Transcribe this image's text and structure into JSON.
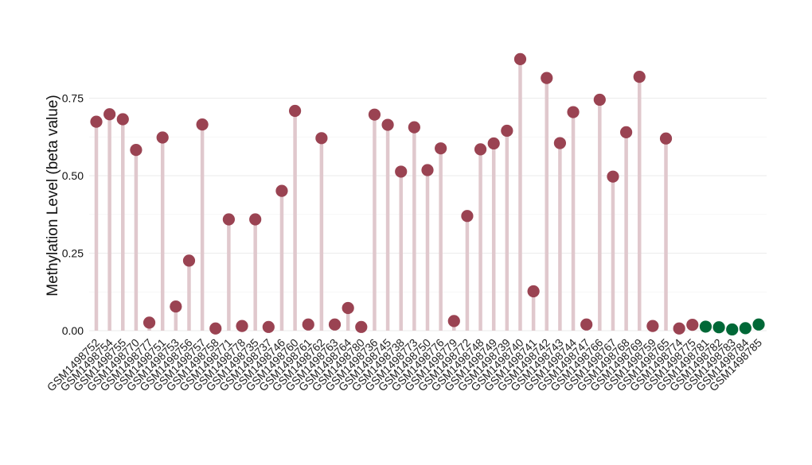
{
  "chart_data": {
    "type": "lollipop",
    "title": "",
    "xlabel": "",
    "ylabel": "Methylation Level (beta value)",
    "ylim": [
      0,
      0.87
    ],
    "yticks": [
      0.0,
      0.25,
      0.5,
      0.75
    ],
    "ytick_labels": [
      "0.00",
      "0.25",
      "0.50",
      "0.75"
    ],
    "grid": true,
    "legend": "none",
    "colors": {
      "group1_point": "#9a4352",
      "group1_stem": "#e0c8cd",
      "group2_point": "#006837",
      "group2_stem": "#c4dccc",
      "grid": "#ebebeb"
    },
    "categories": [
      "GSM1498752",
      "GSM1498754",
      "GSM1498755",
      "GSM1498770",
      "GSM1498777",
      "GSM1498751",
      "GSM1498753",
      "GSM1498756",
      "GSM1498757",
      "GSM1498758",
      "GSM1498771",
      "GSM1498778",
      "GSM1498735",
      "GSM1498737",
      "GSM1498746",
      "GSM1498760",
      "GSM1498761",
      "GSM1498762",
      "GSM1498763",
      "GSM1498764",
      "GSM1498780",
      "GSM1498736",
      "GSM1498745",
      "GSM1498738",
      "GSM1498773",
      "GSM1498750",
      "GSM1498776",
      "GSM1498779",
      "GSM1498772",
      "GSM1498748",
      "GSM1498749",
      "GSM1498739",
      "GSM1498740",
      "GSM1498741",
      "GSM1498742",
      "GSM1498743",
      "GSM1498744",
      "GSM1498747",
      "GSM1498766",
      "GSM1498767",
      "GSM1498768",
      "GSM1498769",
      "GSM1498759",
      "GSM1498765",
      "GSM1498774",
      "GSM1498775",
      "GSM1498781",
      "GSM1498782",
      "GSM1498783",
      "GSM1498784",
      "GSM1498785"
    ],
    "values": [
      0.674,
      0.698,
      0.682,
      0.583,
      0.026,
      0.623,
      0.078,
      0.226,
      0.665,
      0.007,
      0.359,
      0.015,
      0.359,
      0.012,
      0.451,
      0.709,
      0.02,
      0.621,
      0.02,
      0.073,
      0.012,
      0.697,
      0.664,
      0.513,
      0.656,
      0.518,
      0.588,
      0.031,
      0.37,
      0.585,
      0.604,
      0.645,
      0.876,
      0.127,
      0.815,
      0.605,
      0.705,
      0.02,
      0.745,
      0.497,
      0.64,
      0.819,
      0.015,
      0.62,
      0.007,
      0.019,
      0.013,
      0.011,
      0.004,
      0.008,
      0.02
    ],
    "groups": [
      1,
      1,
      1,
      1,
      1,
      1,
      1,
      1,
      1,
      1,
      1,
      1,
      1,
      1,
      1,
      1,
      1,
      1,
      1,
      1,
      1,
      1,
      1,
      1,
      1,
      1,
      1,
      1,
      1,
      1,
      1,
      1,
      1,
      1,
      1,
      1,
      1,
      1,
      1,
      1,
      1,
      1,
      1,
      1,
      1,
      1,
      2,
      2,
      2,
      2,
      2
    ]
  }
}
